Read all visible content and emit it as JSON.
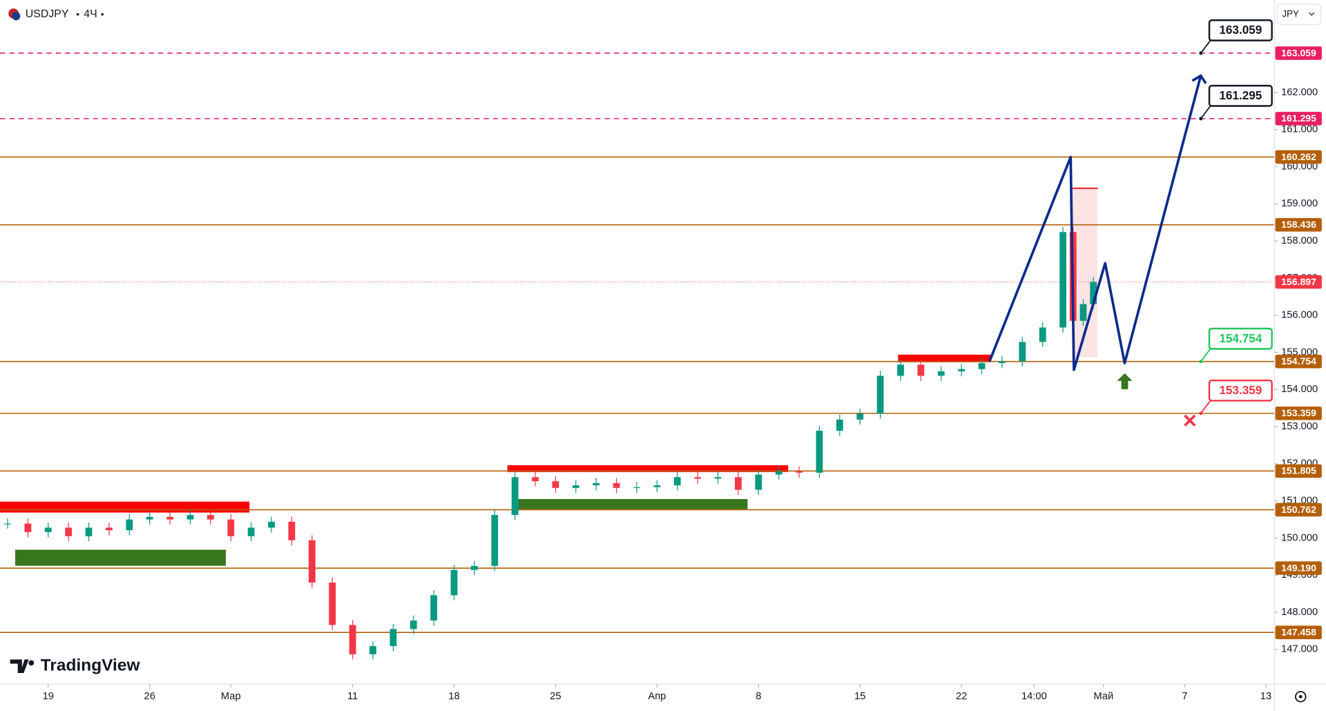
{
  "header": {
    "symbol": "USDJPY",
    "interval": "4Ч",
    "currency": "JPY",
    "logo": "TradingView"
  },
  "chart_data": {
    "type": "candlestick",
    "x": [
      -2,
      -1,
      0,
      1,
      2,
      3,
      4,
      5,
      6,
      7,
      8,
      9,
      10,
      11,
      12,
      13,
      14,
      15,
      16,
      17,
      18,
      19,
      20,
      21,
      22,
      23,
      24,
      25,
      26,
      27,
      28,
      29,
      30,
      31,
      32,
      33,
      34,
      35,
      36,
      37,
      38,
      39,
      40,
      41,
      42,
      43,
      44,
      45,
      46,
      47,
      48,
      49,
      50,
      50.5,
      51,
      51.5
    ],
    "values": [
      150.39,
      150.16,
      150.28,
      150.05,
      150.28,
      150.21,
      150.5,
      150.57,
      150.5,
      150.62,
      150.5,
      150.05,
      150.28,
      150.44,
      149.94,
      148.8,
      147.66,
      146.87,
      147.09,
      147.55,
      147.78,
      148.46,
      149.14,
      149.25,
      150.62,
      151.64,
      151.53,
      151.35,
      151.42,
      151.48,
      151.35,
      151.37,
      151.42,
      151.64,
      151.6,
      151.64,
      151.3,
      151.71,
      151.8,
      151.76,
      152.89,
      153.19,
      153.35,
      154.37,
      154.67,
      154.37,
      154.49,
      154.55,
      154.71,
      154.76,
      155.28,
      155.67,
      158.24,
      155.85,
      156.3,
      156.897
    ],
    "up_color": "#089981",
    "down_color": "#f23645",
    "xlim": [
      -2.375,
      60.42
    ],
    "xticks": [
      {
        "value": 0,
        "label": "19"
      },
      {
        "value": 5,
        "label": "26"
      },
      {
        "value": 9,
        "label": "Мар"
      },
      {
        "value": 15,
        "label": "11"
      },
      {
        "value": 20,
        "label": "18"
      },
      {
        "value": 25,
        "label": "25"
      },
      {
        "value": 30,
        "label": "Апр"
      },
      {
        "value": 35,
        "label": "8"
      },
      {
        "value": 40,
        "label": "15"
      },
      {
        "value": 45,
        "label": "22"
      },
      {
        "value": 48.58,
        "label": "14:00"
      },
      {
        "value": 52,
        "label": "Май"
      },
      {
        "value": 56,
        "label": "7"
      },
      {
        "value": 60,
        "label": "13"
      }
    ],
    "ylim": [
      146.07,
      164.49
    ],
    "yticks": [
      {
        "value": 147,
        "label": "147.000"
      },
      {
        "value": 148,
        "label": "148.000"
      },
      {
        "value": 149,
        "label": "149.000"
      },
      {
        "value": 150,
        "label": "150.000"
      },
      {
        "value": 151,
        "label": "151.000"
      },
      {
        "value": 152,
        "label": "152.000"
      },
      {
        "value": 153,
        "label": "153.000"
      },
      {
        "value": 154,
        "label": "154.000"
      },
      {
        "value": 155,
        "label": "155.000"
      },
      {
        "value": 156,
        "label": "156.000"
      },
      {
        "value": 157,
        "label": "157.000"
      },
      {
        "value": 158,
        "label": "158.000"
      },
      {
        "value": 159,
        "label": "159.000"
      },
      {
        "value": 160,
        "label": "160.000"
      },
      {
        "value": 161,
        "label": "161.000"
      },
      {
        "value": 162,
        "label": "162.000"
      }
    ],
    "levels": [
      {
        "value": 163.059,
        "color": "#e91e63",
        "dashed": true
      },
      {
        "value": 161.295,
        "color": "#e91e63",
        "dashed": true
      },
      {
        "value": 160.262,
        "color": "#b45f06",
        "dashed": false
      },
      {
        "value": 158.436,
        "color": "#b45f06",
        "dashed": false
      },
      {
        "value": 154.754,
        "color": "#b45f06",
        "dashed": false
      },
      {
        "value": 153.359,
        "color": "#b45f06",
        "dashed": false
      },
      {
        "value": 151.805,
        "color": "#b45f06",
        "dashed": false
      },
      {
        "value": 150.762,
        "color": "#b45f06",
        "dashed": false
      },
      {
        "value": 149.19,
        "label": "149.190",
        "color": "#b45f06",
        "dashed": false
      },
      {
        "value": 147.458,
        "color": "#b45f06",
        "dashed": false
      }
    ],
    "last_price": {
      "value": 156.897,
      "color": "#f23645"
    },
    "projection": {
      "color": "#0d2a8c",
      "x": [
        46.38,
        50.38,
        50.54,
        52.08,
        53.04,
        56.79
      ],
      "values": [
        154.754,
        160.262,
        154.53,
        157.4,
        154.71,
        162.45
      ]
    },
    "callouts": [
      {
        "value": 163.059,
        "color": "#131722"
      },
      {
        "value": 161.295,
        "color": "#131722"
      },
      {
        "value": 154.754,
        "color": "#22c55e"
      },
      {
        "value": 153.359,
        "color": "#f23645"
      }
    ]
  }
}
